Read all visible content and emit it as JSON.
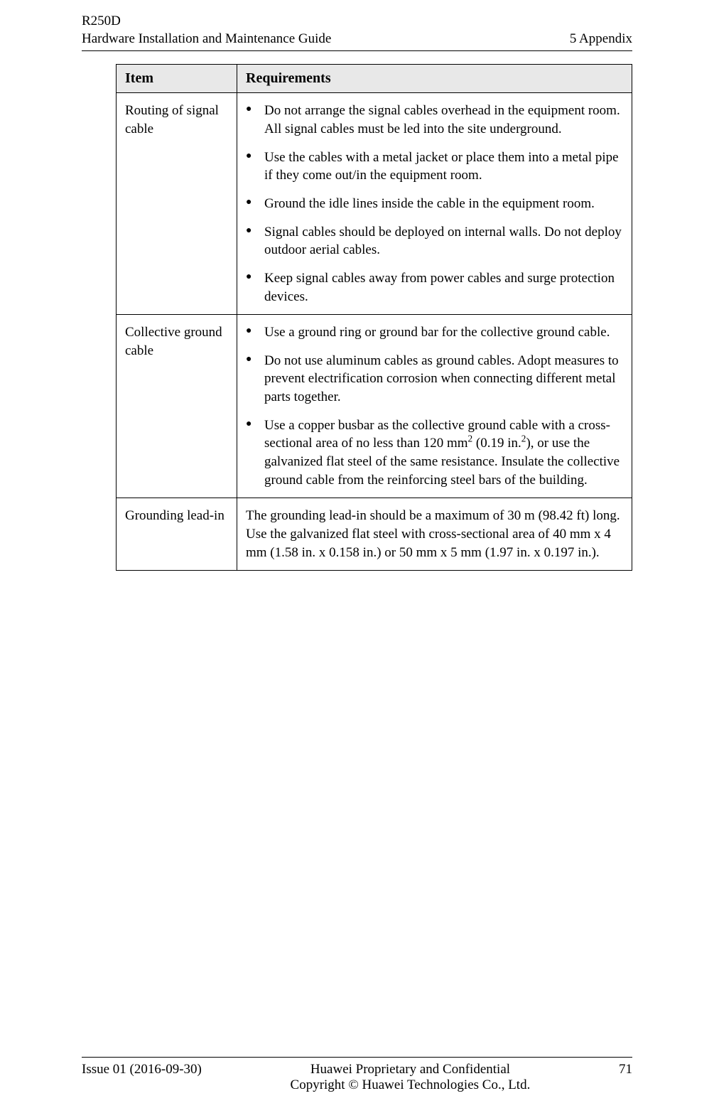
{
  "header": {
    "model": "R250D",
    "doc_title": "Hardware Installation and Maintenance Guide",
    "section": "5 Appendix"
  },
  "table": {
    "columns": [
      "Item",
      "Requirements"
    ],
    "rows": [
      {
        "item": "Routing of signal cable",
        "bullets": [
          "Do not arrange the signal cables overhead in the equipment room. All signal cables must be led into the site underground.",
          "Use the cables with a metal jacket or place them into a metal pipe if they come out/in the equipment room.",
          "Ground the idle lines inside the cable in the equipment room.",
          "Signal cables should be deployed on internal walls. Do not deploy outdoor aerial cables.",
          "Keep signal cables away from power cables and surge protection devices."
        ]
      },
      {
        "item": "Collective ground cable",
        "bullets": [
          "Use a ground ring or ground bar for the collective ground cable.",
          "Do not use aluminum cables as ground cables. Adopt measures to prevent electrification corrosion when connecting different metal parts together.",
          "__SPECIAL_BUSBAR__"
        ],
        "busbar_html_parts": {
          "pre": "Use a copper busbar as the collective ground cable with a cross-sectional area of no less than 120 mm",
          "sup1": "2",
          "mid": " (0.19 in.",
          "sup2": "2",
          "post": "), or use the galvanized flat steel of the same resistance. Insulate the collective ground cable from the reinforcing steel bars of the building."
        }
      },
      {
        "item": "Grounding lead-in",
        "text": "The grounding lead-in should be a maximum of 30 m (98.42 ft) long. Use the galvanized flat steel with cross-sectional area of 40 mm x 4 mm (1.58 in. x 0.158 in.) or 50 mm x 5 mm (1.97 in. x 0.197 in.)."
      }
    ]
  },
  "footer": {
    "issue": "Issue 01 (2016-09-30)",
    "line1": "Huawei Proprietary and Confidential",
    "line2": "Copyright © Huawei Technologies Co., Ltd.",
    "page": "71"
  }
}
